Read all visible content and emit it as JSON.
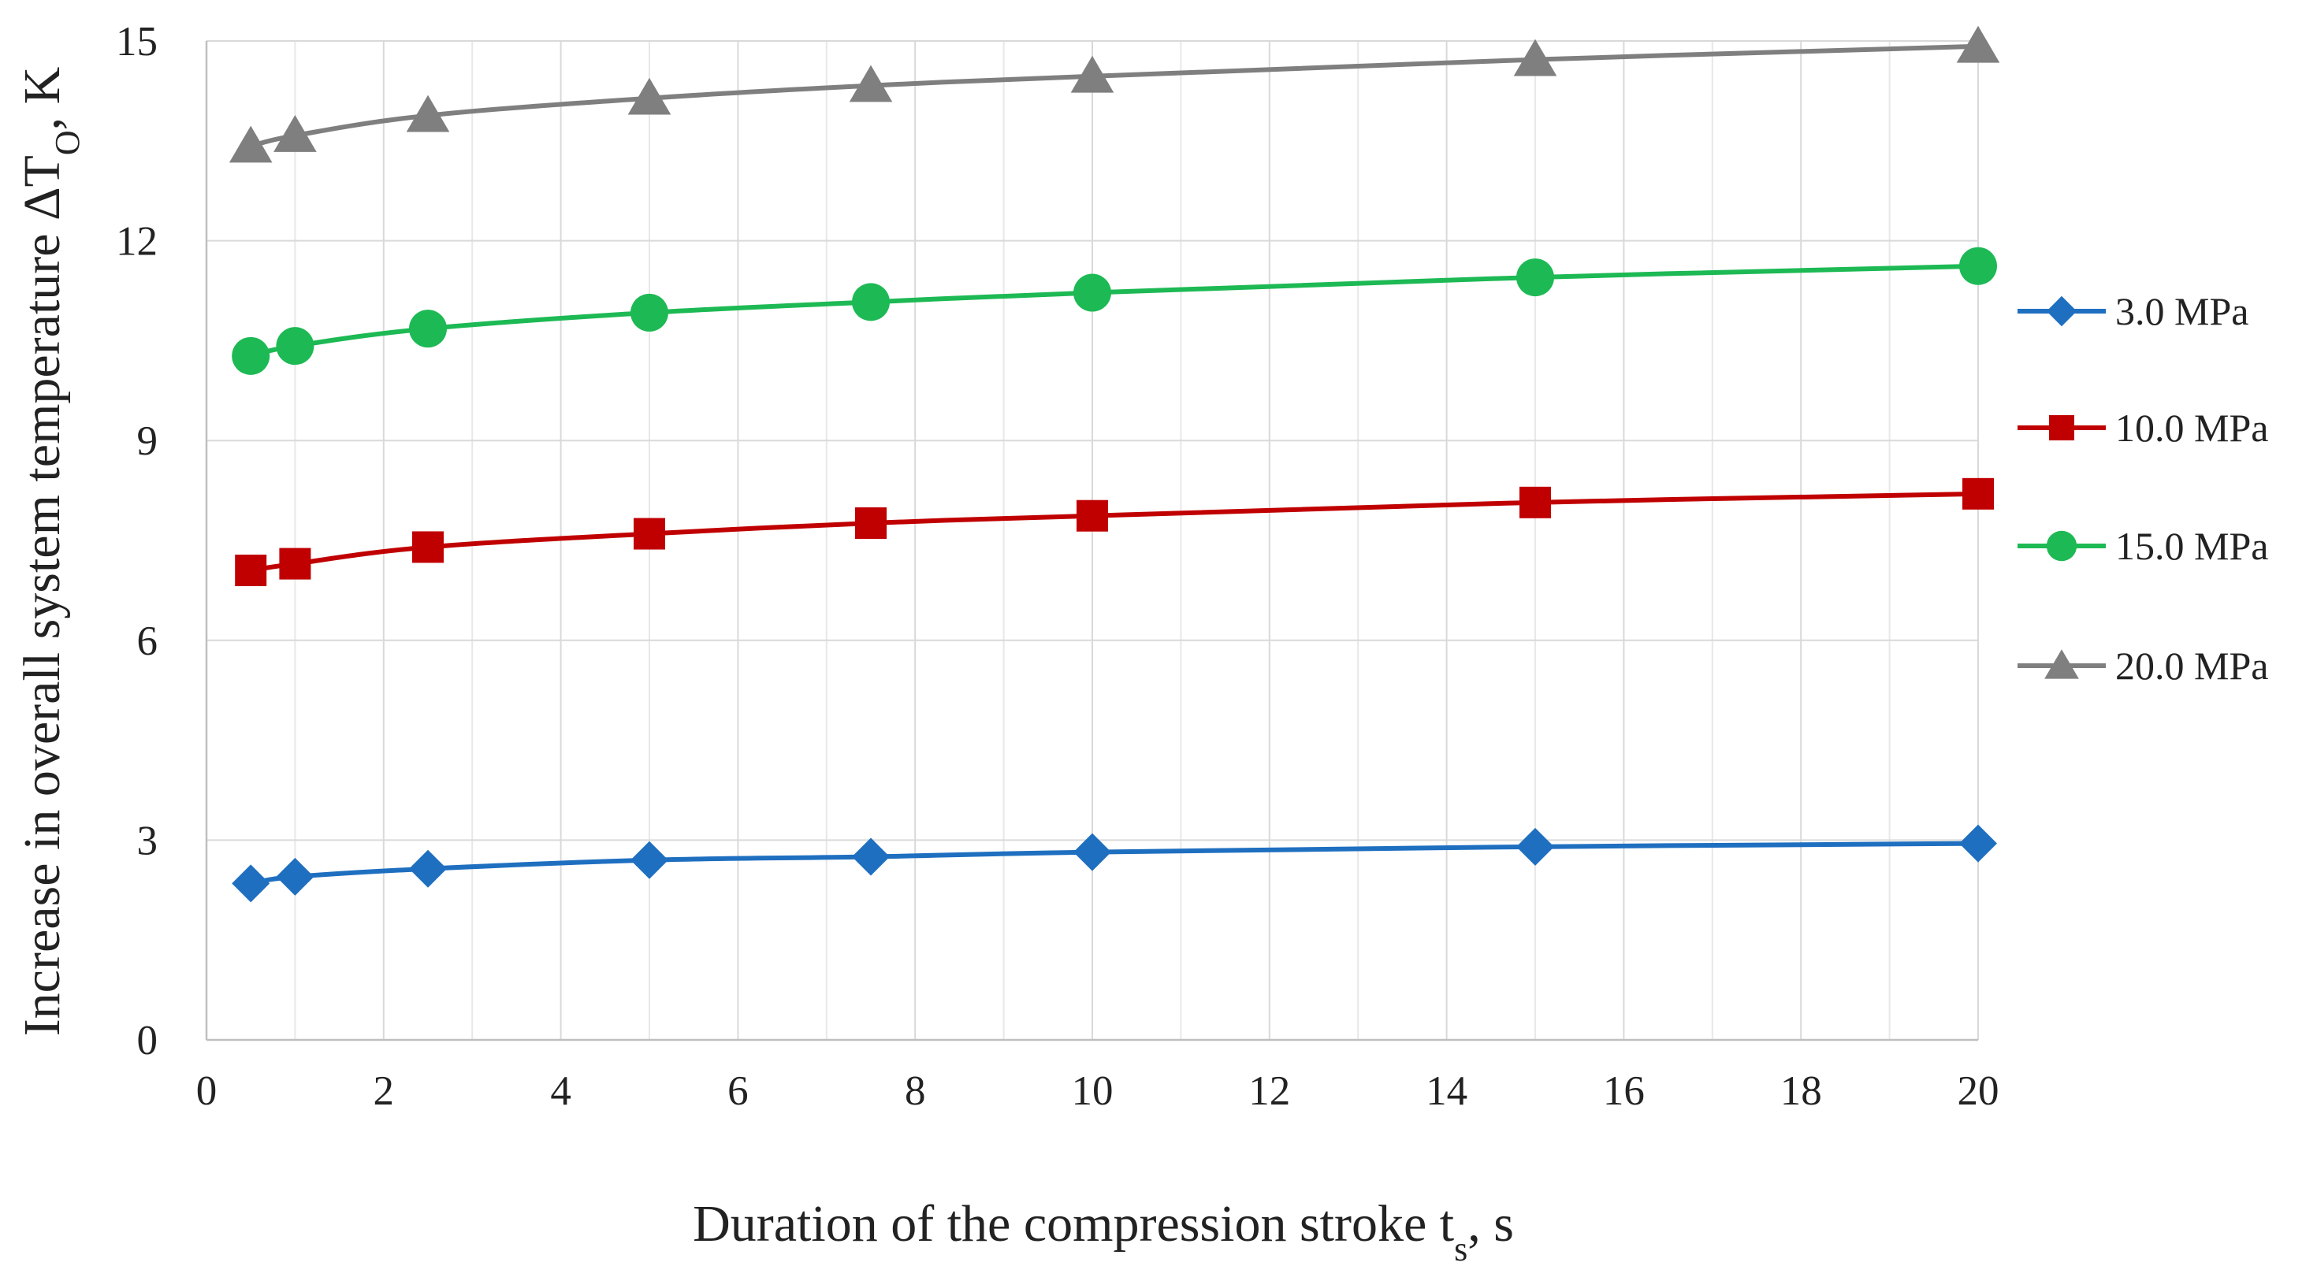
{
  "chart_data": {
    "type": "line",
    "title": "",
    "xlabel": "Duration of the compression stroke t",
    "xlabel_sub": "s",
    "xlabel_suffix": ", s",
    "ylabel": "Increase in overall system temperature ΔT",
    "ylabel_sub": "O",
    "ylabel_suffix": ", K",
    "xlim": [
      0,
      20
    ],
    "ylim": [
      0,
      15
    ],
    "x_ticks": [
      "0",
      "2",
      "4",
      "6",
      "8",
      "10",
      "12",
      "14",
      "16",
      "18",
      "20"
    ],
    "y_ticks": [
      "0",
      "3",
      "6",
      "9",
      "12",
      "15"
    ],
    "x_tick_values": [
      0,
      2,
      4,
      6,
      8,
      10,
      12,
      14,
      16,
      18,
      20
    ],
    "y_tick_values": [
      0,
      3,
      6,
      9,
      12,
      15
    ],
    "x_minor_grid": [
      1,
      3,
      5,
      7,
      9,
      11,
      13,
      15,
      17,
      19
    ],
    "grid": true,
    "legend_position": "right",
    "x": [
      0.5,
      1,
      2.5,
      5,
      7.5,
      10,
      15,
      20
    ],
    "series": [
      {
        "name": "3.0 MPa",
        "marker": "diamond",
        "color": "#1f6fc0",
        "values": [
          2.35,
          2.45,
          2.57,
          2.7,
          2.75,
          2.82,
          2.9,
          2.95
        ]
      },
      {
        "name": "10.0 MPa",
        "marker": "square",
        "color": "#c00000",
        "values": [
          7.05,
          7.15,
          7.4,
          7.6,
          7.76,
          7.87,
          8.07,
          8.2
        ]
      },
      {
        "name": "15.0 MPa",
        "marker": "circle",
        "color": "#1db954",
        "values": [
          10.27,
          10.42,
          10.68,
          10.92,
          11.08,
          11.22,
          11.45,
          11.62
        ]
      },
      {
        "name": "20.0 MPa",
        "marker": "triangle",
        "color": "#7f7f7f",
        "values": [
          13.42,
          13.58,
          13.88,
          14.14,
          14.33,
          14.47,
          14.72,
          14.92
        ]
      }
    ]
  }
}
